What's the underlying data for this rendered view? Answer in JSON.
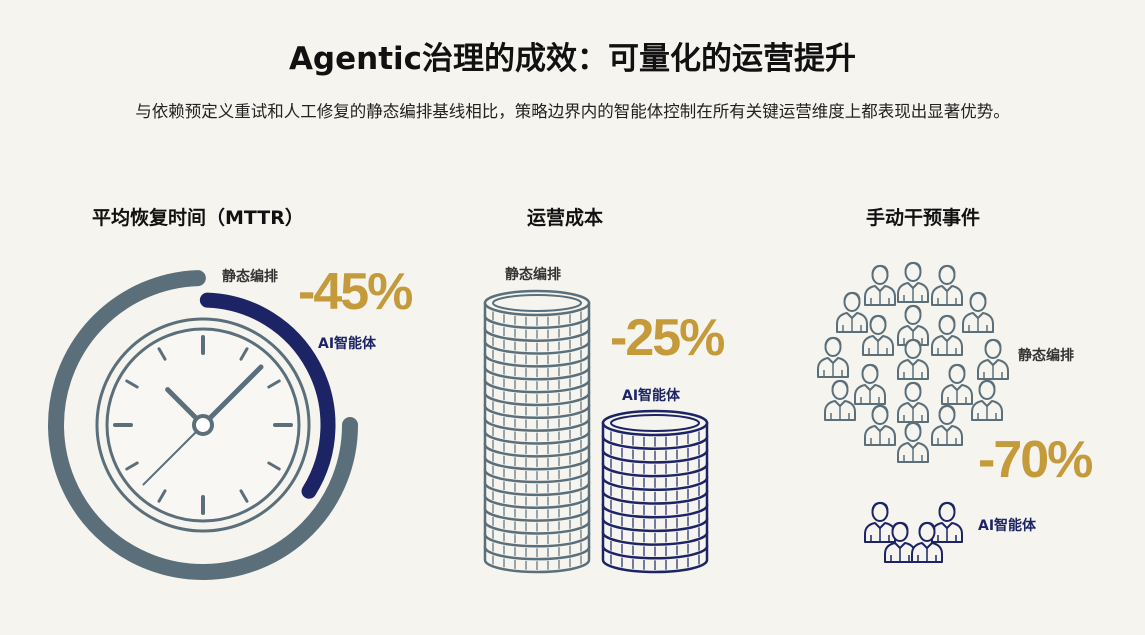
{
  "title": "Agentic治理的成效：可量化的运营提升",
  "subtitle": "与依赖预定义重试和人工修复的静态编排基线相比，策略边界内的智能体控制在所有关键运营维度上都表现出显著优势。",
  "colors": {
    "static": "#5b6f7a",
    "agent": "#1c2466",
    "accent": "#c49a3a",
    "background": "#f5f4ef"
  },
  "panels": [
    {
      "heading": "平均恢复时间（MTTR）",
      "static_label": "静态编排",
      "agent_label": "AI智能体",
      "change": "-45%",
      "icon": "clock-icon"
    },
    {
      "heading": "运营成本",
      "static_label": "静态编排",
      "agent_label": "AI智能体",
      "change": "-25%",
      "icon": "coin-stack-icon"
    },
    {
      "heading": "手动干预事件",
      "static_label": "静态编排",
      "agent_label": "AI智能体",
      "change": "-70%",
      "icon": "person-icon"
    }
  ]
}
